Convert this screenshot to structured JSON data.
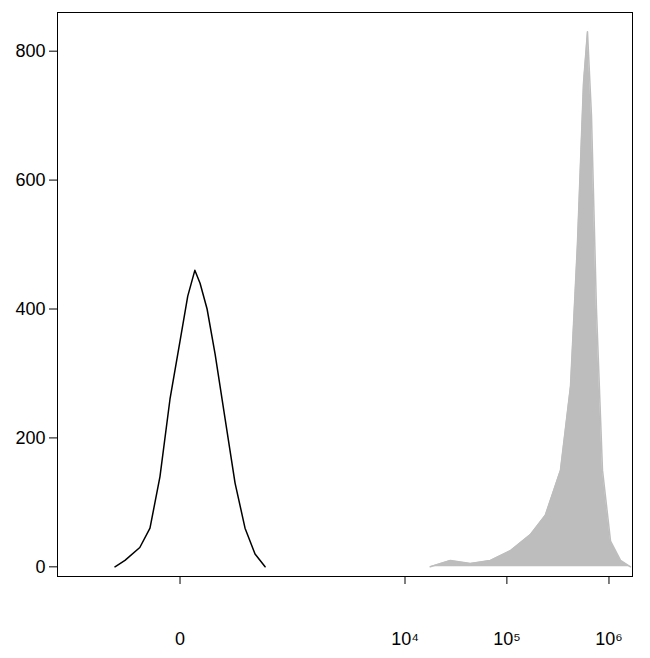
{
  "chart_data": {
    "type": "line",
    "log": "x",
    "xlim": [
      -935,
      1700000
    ],
    "xticks": [
      0,
      {
        "value": 10000,
        "label": "10⁴"
      },
      {
        "value": 100000,
        "label": "10⁵"
      },
      {
        "value": 1000000,
        "label": "10⁶"
      }
    ],
    "ylim": [
      -15,
      860
    ],
    "yticks": [
      0,
      200,
      400,
      600,
      800
    ],
    "series": [
      {
        "type": "line",
        "color": "#000000",
        "x": [
          -210,
          -155,
          -93,
          -61,
          -36,
          -16,
          0,
          12,
          25,
          36,
          53,
          76,
          111,
          155,
          210,
          279,
          366
        ],
        "values": [
          0,
          10,
          30,
          60,
          140,
          260,
          350,
          420,
          460,
          440,
          400,
          330,
          230,
          130,
          60,
          20,
          0
        ]
      },
      {
        "type": "area",
        "color": "#bdbdbd",
        "x": [
          17700,
          27900,
          43900,
          68900,
          108000,
          170000,
          238000,
          335000,
          420000,
          491000,
          563000,
          616000,
          674000,
          754000,
          864000,
          1036000,
          1298000,
          1625000
        ],
        "values": [
          0,
          10,
          5,
          10,
          25,
          50,
          80,
          150,
          280,
          500,
          750,
          830,
          700,
          400,
          150,
          40,
          10,
          0
        ]
      }
    ]
  }
}
